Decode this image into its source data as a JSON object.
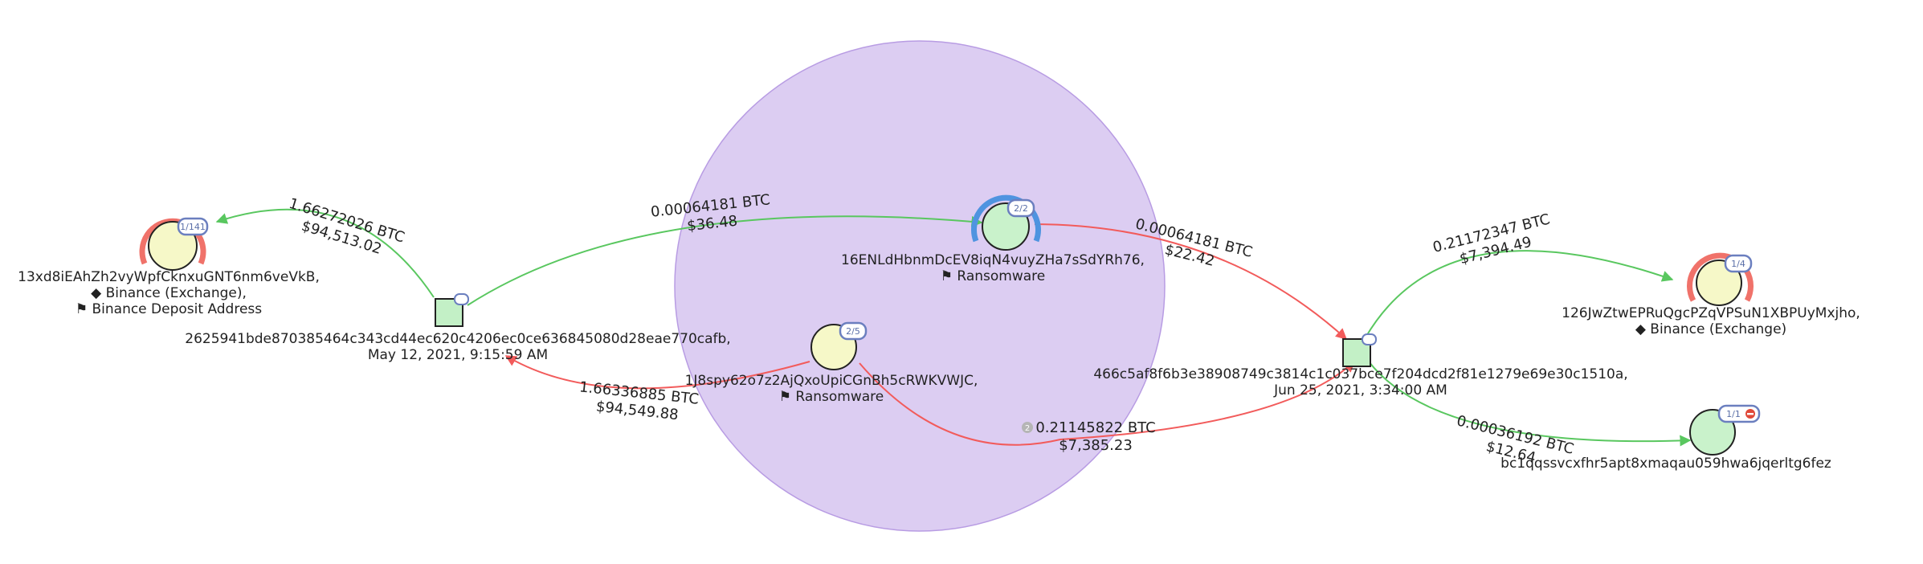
{
  "colors": {
    "cluster_fill": "#dccdf2",
    "cluster_stroke": "#b89ce3",
    "node_fill": "#f6f8c8",
    "tx_fill": "#c3f0c6",
    "green_node_fill": "#c9f2cb",
    "edge_in": "#59c75f",
    "edge_out": "#f25b5b",
    "ring_red": "#f0726a",
    "ring_blue": "#4f94e0",
    "badge_stroke": "#6b7fbf"
  },
  "addresses": [
    {
      "id": "a1",
      "badge": "1/141",
      "lines": [
        "13xd8iEAhZh2vyWpfCknxuGNT6nm6veVkB,",
        "◆ Binance (Exchange),",
        "⚑ Binance Deposit Address"
      ]
    },
    {
      "id": "a2",
      "badge": "2/2",
      "lines": [
        "16ENLdHbnmDcEV8iqN4vuyZHa7sSdYRh76,",
        "⚑ Ransomware"
      ]
    },
    {
      "id": "a3",
      "badge": "2/5",
      "lines": [
        "1J8spy62o7z2AjQxoUpiCGnBh5cRWKVWJC,",
        "⚑ Ransomware"
      ]
    },
    {
      "id": "a4",
      "badge": "1/4",
      "lines": [
        "126JwZtwEPRuQgcPZqVPSuN1XBPUyMxjho,",
        "◆ Binance (Exchange)"
      ]
    },
    {
      "id": "a5",
      "badge": "1/1",
      "lines": [
        "bc1qqssvcxfhr5apt8xmaqau059hwa6jqerltg6fez"
      ]
    }
  ],
  "transactions": [
    {
      "id": "t1",
      "badge": "",
      "lines": [
        "2625941bde870385464c343cd44ec620c4206ec0ce636845080d28eae770cafb,",
        "May 12, 2021, 9:15:59 AM"
      ]
    },
    {
      "id": "t2",
      "badge": "",
      "lines": [
        "466c5af8f6b3e38908749c3814c1c037bce7f204dcd2f81e1279e69e30c1510a,",
        "Jun 25, 2021, 3:34:00 AM"
      ]
    }
  ],
  "edges": [
    {
      "id": "e1",
      "from": "t1",
      "to": "a1",
      "btc": "1.66272026  BTC",
      "usd": "$94,513.02",
      "kind": "in",
      "count": ""
    },
    {
      "id": "e2",
      "from": "t1",
      "to": "a2",
      "btc": "0.00064181  BTC",
      "usd": "$36.48",
      "kind": "in",
      "count": ""
    },
    {
      "id": "e3",
      "from": "a3",
      "to": "t1",
      "btc": "1.66336885  BTC",
      "usd": "$94,549.88",
      "kind": "out",
      "count": ""
    },
    {
      "id": "e4",
      "from": "a2",
      "to": "t2",
      "btc": "0.00064181  BTC",
      "usd": "$22.42",
      "kind": "out",
      "count": ""
    },
    {
      "id": "e5",
      "from": "a3",
      "to": "t2",
      "btc": "0.21145822  BTC",
      "usd": "$7,385.23",
      "kind": "out",
      "count": "2"
    },
    {
      "id": "e6",
      "from": "t2",
      "to": "a4",
      "btc": "0.21172347  BTC",
      "usd": "$7,394.49",
      "kind": "in",
      "count": ""
    },
    {
      "id": "e7",
      "from": "t2",
      "to": "a5",
      "btc": "0.00036192  BTC",
      "usd": "$12.64",
      "kind": "in",
      "count": ""
    }
  ]
}
